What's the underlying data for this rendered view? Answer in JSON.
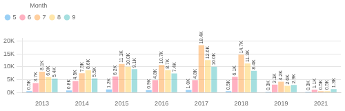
{
  "chart_data": {
    "type": "bar",
    "categories": [
      "2013",
      "2014",
      "2015",
      "2016",
      "2017",
      "2018",
      "2019",
      "2021"
    ],
    "legend_title": "Month",
    "legend": "upper left",
    "grid": true,
    "data_labels": true,
    "ylim": [
      0,
      21000
    ],
    "yticks": [
      {
        "value": 0,
        "label": "0K"
      },
      {
        "value": 5000,
        "label": "5K"
      },
      {
        "value": 10000,
        "label": "10K"
      },
      {
        "value": 15000,
        "label": "15K"
      },
      {
        "value": 20000,
        "label": "20K"
      }
    ],
    "series": [
      {
        "name": "5",
        "values": [
          500,
          800,
          1200,
          900,
          1000,
          500,
          300,
          300
        ],
        "value_labels": [
          "0.5K",
          "0.8K",
          "1.2K",
          "0.9K",
          "1.0K",
          "0.5K",
          "0.3K",
          "0.3K"
        ]
      },
      {
        "name": "6",
        "values": [
          3700,
          4500,
          6200,
          4800,
          4800,
          6100,
          3100,
          1100
        ],
        "value_labels": [
          "3.7K",
          "4.5K",
          "6.2K",
          "4.8K",
          "4.8K",
          "6.1K",
          "3.1K",
          "1.1K"
        ]
      },
      {
        "name": "7",
        "values": [
          8100,
          7500,
          11100,
          10700,
          18400,
          14700,
          4200,
          500
        ],
        "value_labels": [
          "8.1K",
          "7.5K",
          "11.1K",
          "10.7K",
          "18.4K",
          "14.7K",
          "4.2K",
          "0.5K"
        ]
      },
      {
        "name": "8",
        "values": [
          6000,
          8600,
          10000,
          8700,
          12600,
          11300,
          2600,
          500
        ],
        "value_labels": [
          "6.0K",
          "8.6K",
          "10.0K",
          "8.7K",
          "12.6K",
          "11.3K",
          "2.6K",
          "0.5K"
        ]
      },
      {
        "name": "9",
        "values": [
          5400,
          5500,
          9100,
          7400,
          10000,
          8400,
          2900,
          1300
        ],
        "value_labels": [
          "5.4K",
          "5.5K",
          "9.1K",
          "7.4K",
          "10.0K",
          "8.4K",
          "2.9K",
          "1.3K"
        ]
      }
    ]
  }
}
